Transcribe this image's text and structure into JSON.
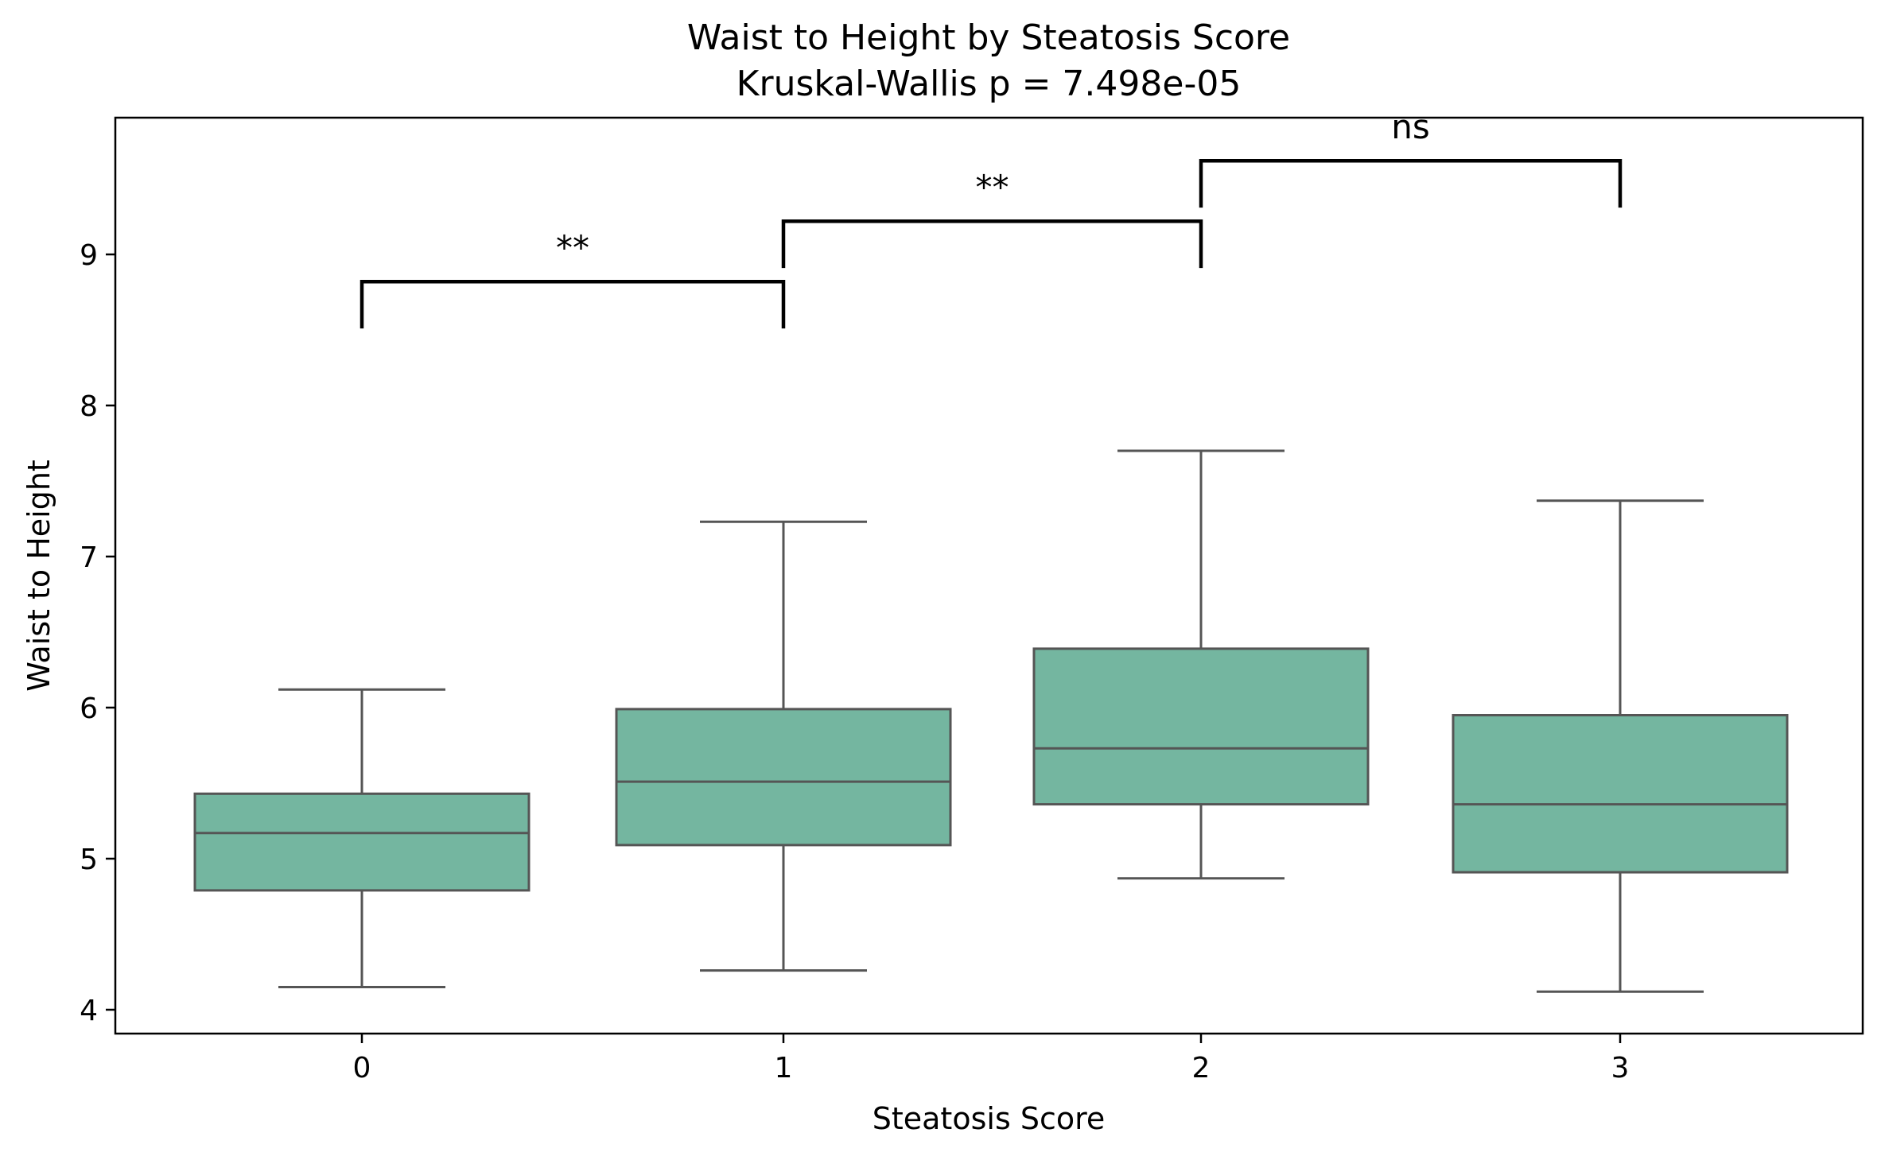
{
  "chart_data": {
    "type": "box",
    "title": "Waist to Height by Steatosis Score",
    "subtitle": "Kruskal-Wallis p = 7.498e-05",
    "xlabel": "Steatosis Score",
    "ylabel": "Waist to Height",
    "categories": [
      "0",
      "1",
      "2",
      "3"
    ],
    "yticks": [
      "4",
      "5",
      "6",
      "7",
      "8",
      "9"
    ],
    "ylim": [
      3.85,
      9.9
    ],
    "grid": false,
    "box_color": "#74b6a0",
    "line_color": "#555555",
    "boxes": [
      {
        "category": "0",
        "whisker_low": 4.15,
        "q1": 4.79,
        "median": 5.17,
        "q3": 5.43,
        "whisker_high": 6.12
      },
      {
        "category": "1",
        "whisker_low": 4.26,
        "q1": 5.09,
        "median": 5.51,
        "q3": 5.99,
        "whisker_high": 7.23
      },
      {
        "category": "2",
        "whisker_low": 4.87,
        "q1": 5.36,
        "median": 5.73,
        "q3": 6.39,
        "whisker_high": 7.7
      },
      {
        "category": "3",
        "whisker_low": 4.12,
        "q1": 4.91,
        "median": 5.36,
        "q3": 5.95,
        "whisker_high": 7.37
      }
    ],
    "annotations": [
      {
        "from": "0",
        "to": "1",
        "label": "**",
        "bracket_y": 8.82,
        "leg_low": 8.51
      },
      {
        "from": "1",
        "to": "2",
        "label": "**",
        "bracket_y": 9.22,
        "leg_low": 8.91
      },
      {
        "from": "2",
        "to": "3",
        "label": "ns",
        "bracket_y": 9.62,
        "leg_low": 9.31
      }
    ]
  }
}
